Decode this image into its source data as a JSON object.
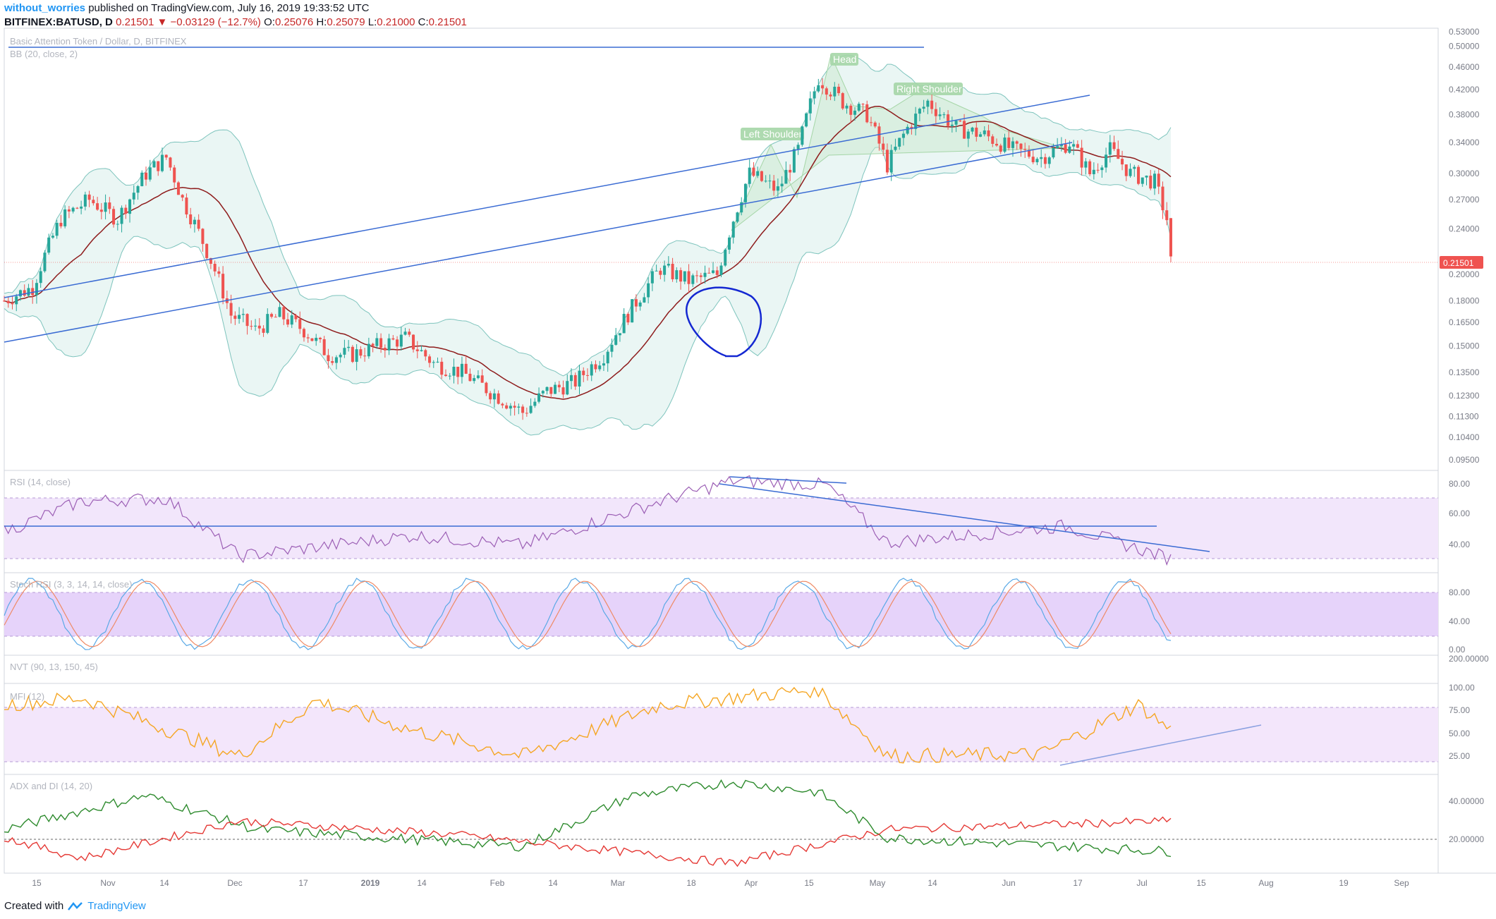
{
  "header": {
    "author": "without_worries",
    "published": "published on TradingView.com, July 16, 2019 19:33:52 UTC",
    "symbol": "BITFINEX:BATUSD, D",
    "last": "0.21501",
    "change": "▼ −0.03129 (−12.7%)",
    "o_label": "O:",
    "o": "0.25076",
    "h_label": "H:",
    "h": "0.25079",
    "l_label": "L:",
    "l": "0.21000",
    "c_label": "C:",
    "c": "0.21501"
  },
  "footer": {
    "created_with": "Created with",
    "brand": "TradingView"
  },
  "panes": {
    "price_title": "Basic Attention Token / Dollar, D, BITFINEX",
    "bb_title": "BB (20, close, 2)",
    "rsi_title": "RSI (14, close)",
    "stoch_title": "Stoch RSI (3, 3, 14, 14, close)",
    "nvt_title": "NVT (90, 13, 150, 45)",
    "mfi_title": "MFI (12)",
    "adx_title": "ADX and DI (14, 20)"
  },
  "colors": {
    "up": "#26a69a",
    "down": "#ef5350",
    "bb_fill": "#e8f5f3",
    "bb_line": "#7ec4bd",
    "basis": "#8e1c1c",
    "trend": "#3a6bd3",
    "rsi": "#9c5fb5",
    "rsi_band": "#f2e6fb",
    "stoch_band": "#e6d3fa",
    "stoch_k": "#5aa9e6",
    "stoch_d": "#ef8a65",
    "mfi": "#f5a623",
    "mfi_band": "#f3e6fb",
    "di_plus": "#2e8b2e",
    "di_minus": "#e53935",
    "hs_fill": "#c8e6c9",
    "hand_drawn": "#1428d2"
  },
  "annotations": {
    "head": "Head",
    "left_shoulder": "Left Shoulder",
    "right_shoulder": "Right Shoulder"
  },
  "axes": {
    "price_ticks": [
      "0.53000",
      "0.50000",
      "0.46000",
      "0.42000",
      "0.38000",
      "0.34000",
      "0.30000",
      "0.27000",
      "0.24000",
      "0.21000",
      "0.20000",
      "0.18000",
      "0.16500",
      "0.15000",
      "0.13500",
      "0.12300",
      "0.11300",
      "0.10400",
      "0.09500"
    ],
    "price_marker": "0.21501",
    "rsi_ticks": [
      "80.00",
      "60.00",
      "40.00"
    ],
    "stoch_ticks": [
      "80.00",
      "40.00",
      "0.00"
    ],
    "nvt_ticks": [
      "200.00000"
    ],
    "mfi_ticks": [
      "100.00",
      "75.00",
      "50.00",
      "25.00"
    ],
    "adx_ticks": [
      "40.00000",
      "20.00000"
    ],
    "time_labels": [
      "15",
      "Nov",
      "14",
      "Dec",
      "17",
      "2019",
      "14",
      "Feb",
      "14",
      "Mar",
      "18",
      "Apr",
      "15",
      "May",
      "14",
      "Jun",
      "17",
      "Jul",
      "15",
      "Aug",
      "19",
      "Sep"
    ]
  },
  "chart_data": {
    "type": "candlestick",
    "symbol": "BITFINEX:BATUSD",
    "timeframe": "D",
    "x_range": [
      "2018-10-01",
      "2019-09-20"
    ],
    "last_candle": {
      "date": "2019-07-16",
      "open": 0.25076,
      "high": 0.25079,
      "low": 0.21,
      "close": 0.21501
    },
    "close_keypoints": [
      {
        "date": "2018-10-01",
        "close": 0.18
      },
      {
        "date": "2018-10-08",
        "close": 0.19
      },
      {
        "date": "2018-10-15",
        "close": 0.25
      },
      {
        "date": "2018-10-22",
        "close": 0.27
      },
      {
        "date": "2018-10-29",
        "close": 0.25
      },
      {
        "date": "2018-11-05",
        "close": 0.3
      },
      {
        "date": "2018-11-10",
        "close": 0.32
      },
      {
        "date": "2018-11-14",
        "close": 0.27
      },
      {
        "date": "2018-11-20",
        "close": 0.22
      },
      {
        "date": "2018-11-26",
        "close": 0.17
      },
      {
        "date": "2018-12-02",
        "close": 0.16
      },
      {
        "date": "2018-12-08",
        "close": 0.17
      },
      {
        "date": "2018-12-14",
        "close": 0.16
      },
      {
        "date": "2018-12-20",
        "close": 0.145
      },
      {
        "date": "2018-12-26",
        "close": 0.145
      },
      {
        "date": "2019-01-01",
        "close": 0.15
      },
      {
        "date": "2019-01-08",
        "close": 0.155
      },
      {
        "date": "2019-01-15",
        "close": 0.14
      },
      {
        "date": "2019-01-22",
        "close": 0.135
      },
      {
        "date": "2019-01-29",
        "close": 0.125
      },
      {
        "date": "2019-02-06",
        "close": 0.115
      },
      {
        "date": "2019-02-12",
        "close": 0.125
      },
      {
        "date": "2019-02-19",
        "close": 0.13
      },
      {
        "date": "2019-02-26",
        "close": 0.145
      },
      {
        "date": "2019-03-05",
        "close": 0.175
      },
      {
        "date": "2019-03-12",
        "close": 0.205
      },
      {
        "date": "2019-03-19",
        "close": 0.195
      },
      {
        "date": "2019-03-26",
        "close": 0.2
      },
      {
        "date": "2019-03-30",
        "close": 0.25
      },
      {
        "date": "2019-04-03",
        "close": 0.3
      },
      {
        "date": "2019-04-10",
        "close": 0.28
      },
      {
        "date": "2019-04-15",
        "close": 0.33
      },
      {
        "date": "2019-04-20",
        "close": 0.44
      },
      {
        "date": "2019-04-26",
        "close": 0.4
      },
      {
        "date": "2019-05-02",
        "close": 0.38
      },
      {
        "date": "2019-05-07",
        "close": 0.31
      },
      {
        "date": "2019-05-12",
        "close": 0.36
      },
      {
        "date": "2019-05-17",
        "close": 0.4
      },
      {
        "date": "2019-05-24",
        "close": 0.36
      },
      {
        "date": "2019-05-31",
        "close": 0.35
      },
      {
        "date": "2019-06-07",
        "close": 0.33
      },
      {
        "date": "2019-06-14",
        "close": 0.32
      },
      {
        "date": "2019-06-21",
        "close": 0.34
      },
      {
        "date": "2019-06-26",
        "close": 0.3
      },
      {
        "date": "2019-07-01",
        "close": 0.33
      },
      {
        "date": "2019-07-06",
        "close": 0.3
      },
      {
        "date": "2019-07-12",
        "close": 0.29
      },
      {
        "date": "2019-07-15",
        "close": 0.25
      },
      {
        "date": "2019-07-16",
        "close": 0.21501
      }
    ],
    "rsi_keypoints": [
      {
        "date": "2018-10-01",
        "value": 48
      },
      {
        "date": "2018-10-20",
        "value": 70
      },
      {
        "date": "2018-11-10",
        "value": 72
      },
      {
        "date": "2018-11-28",
        "value": 30
      },
      {
        "date": "2019-01-10",
        "value": 45
      },
      {
        "date": "2019-02-06",
        "value": 38
      },
      {
        "date": "2019-03-12",
        "value": 70
      },
      {
        "date": "2019-03-30",
        "value": 85
      },
      {
        "date": "2019-04-22",
        "value": 82
      },
      {
        "date": "2019-05-07",
        "value": 40
      },
      {
        "date": "2019-06-20",
        "value": 52
      },
      {
        "date": "2019-07-16",
        "value": 28
      }
    ],
    "mfi_keypoints": [
      {
        "date": "2018-10-01",
        "value": 80
      },
      {
        "date": "2018-10-20",
        "value": 88
      },
      {
        "date": "2018-11-28",
        "value": 20
      },
      {
        "date": "2018-12-17",
        "value": 85
      },
      {
        "date": "2019-01-10",
        "value": 50
      },
      {
        "date": "2019-02-06",
        "value": 20
      },
      {
        "date": "2019-03-12",
        "value": 80
      },
      {
        "date": "2019-04-20",
        "value": 98
      },
      {
        "date": "2019-05-07",
        "value": 20
      },
      {
        "date": "2019-06-14",
        "value": 22
      },
      {
        "date": "2019-07-08",
        "value": 80
      },
      {
        "date": "2019-07-16",
        "value": 50
      }
    ],
    "adx_plus_keypoints": [
      {
        "date": "2018-10-01",
        "value": 25
      },
      {
        "date": "2018-11-05",
        "value": 45
      },
      {
        "date": "2018-12-02",
        "value": 25
      },
      {
        "date": "2019-02-06",
        "value": 15
      },
      {
        "date": "2019-03-05",
        "value": 45
      },
      {
        "date": "2019-03-30",
        "value": 53
      },
      {
        "date": "2019-04-20",
        "value": 47
      },
      {
        "date": "2019-05-07",
        "value": 20
      },
      {
        "date": "2019-07-16",
        "value": 12
      }
    ],
    "adx_minus_keypoints": [
      {
        "date": "2018-10-01",
        "value": 20
      },
      {
        "date": "2018-10-20",
        "value": 8
      },
      {
        "date": "2018-11-28",
        "value": 30
      },
      {
        "date": "2019-01-20",
        "value": 22
      },
      {
        "date": "2019-03-30",
        "value": 5
      },
      {
        "date": "2019-05-07",
        "value": 25
      },
      {
        "date": "2019-07-16",
        "value": 30
      }
    ]
  }
}
